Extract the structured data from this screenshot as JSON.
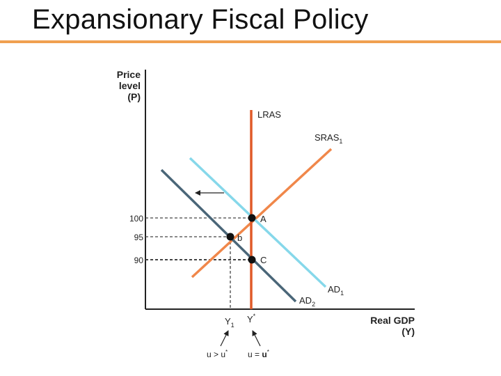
{
  "title": "Expansionary Fiscal Policy",
  "colors": {
    "title_rule": "#f0a050",
    "lras": "#e05a28",
    "sras": "#f0874a",
    "ad1": "#86d8ea",
    "ad2": "#4a6678",
    "axis": "#222222",
    "guide": "#444444",
    "point": "#111111"
  },
  "axes": {
    "y_label": [
      "Price",
      "level",
      "(P)"
    ],
    "x_label": [
      "Real GDP",
      "(Y)"
    ]
  },
  "curves": {
    "lras": "LRAS",
    "sras": "SRAS",
    "sras_sub": "1",
    "ad1": "AD",
    "ad1_sub": "1",
    "ad2": "AD",
    "ad2_sub": "2"
  },
  "price_ticks": [
    "100",
    "95",
    "90"
  ],
  "points": {
    "a": "A",
    "b": "b",
    "c": "C"
  },
  "output_ticks": {
    "y1": "Y",
    "y1_sub": "1",
    "ystar": "Y",
    "ystar_sup": "*"
  },
  "unemployment": {
    "left": "u > u",
    "left_sup": "*",
    "right_u": "u = ",
    "right_bold": "u",
    "right_sup": "*"
  }
}
